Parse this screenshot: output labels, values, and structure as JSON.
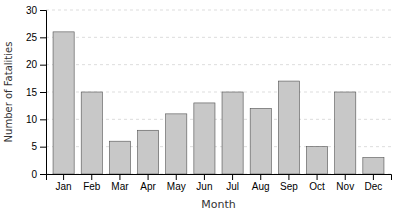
{
  "chart_data": {
    "type": "bar",
    "categories": [
      "Jan",
      "Feb",
      "Mar",
      "Apr",
      "May",
      "Jun",
      "Jul",
      "Aug",
      "Sep",
      "Oct",
      "Nov",
      "Dec"
    ],
    "values": [
      26,
      15,
      6,
      8,
      11,
      13,
      15,
      12,
      17,
      5,
      15,
      3
    ],
    "color": "#c8c8c8",
    "xlabel": "Month",
    "ylabel": "Number of Fatalities",
    "ylim": [
      0,
      30
    ],
    "yticks": [
      0,
      5,
      10,
      15,
      20,
      25,
      30
    ],
    "grid": true
  }
}
